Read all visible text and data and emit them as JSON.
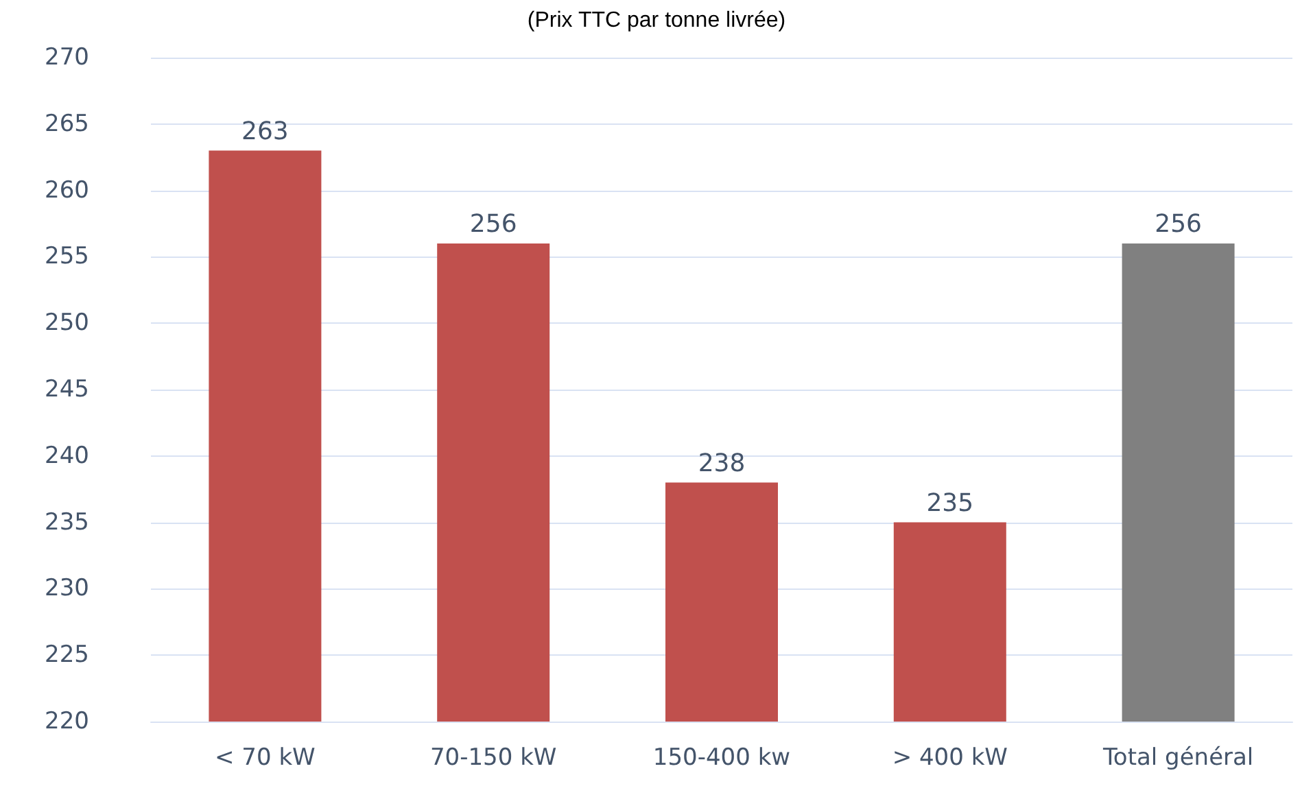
{
  "chart_data": {
    "type": "bar",
    "title": "(Prix TTC par tonne livrée)",
    "categories": [
      "< 70 kW",
      "70-150 kW",
      "150-400 kw",
      "> 400 kW",
      "Total général"
    ],
    "values": [
      263,
      256,
      238,
      235,
      256
    ],
    "colors": [
      "#c0504d",
      "#c0504d",
      "#c0504d",
      "#c0504d",
      "#808080"
    ],
    "ylim": [
      220,
      270
    ],
    "yticks": [
      220,
      225,
      230,
      235,
      240,
      245,
      250,
      255,
      260,
      265,
      270
    ],
    "grid": "y",
    "data_labels": true
  }
}
